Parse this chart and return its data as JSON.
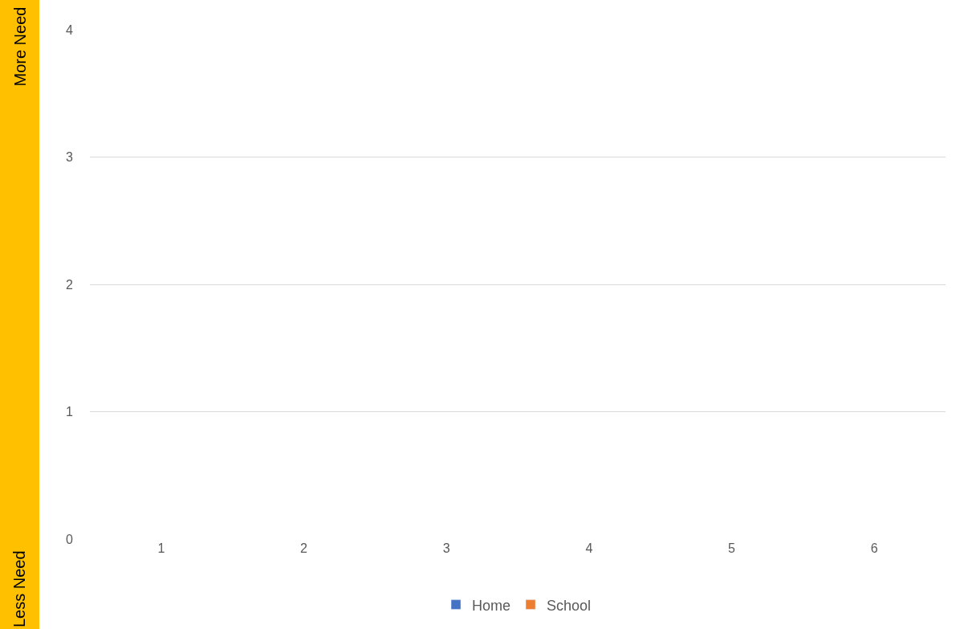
{
  "chart_data": {
    "type": "bar",
    "categories": [
      "1",
      "2",
      "3",
      "4",
      "5",
      "6"
    ],
    "series": [
      {
        "name": "Home",
        "color": "#4472c4",
        "values": [
          null,
          null,
          null,
          null,
          null,
          null
        ]
      },
      {
        "name": "School",
        "color": "#ed7d31",
        "values": [
          null,
          null,
          null,
          null,
          null,
          null
        ]
      }
    ],
    "ylim": [
      0,
      4
    ],
    "yticks": [
      0,
      1,
      2,
      3,
      4
    ],
    "grid": "y",
    "legend": "bottom",
    "annotations": [
      "More Need",
      "Less Need"
    ]
  }
}
